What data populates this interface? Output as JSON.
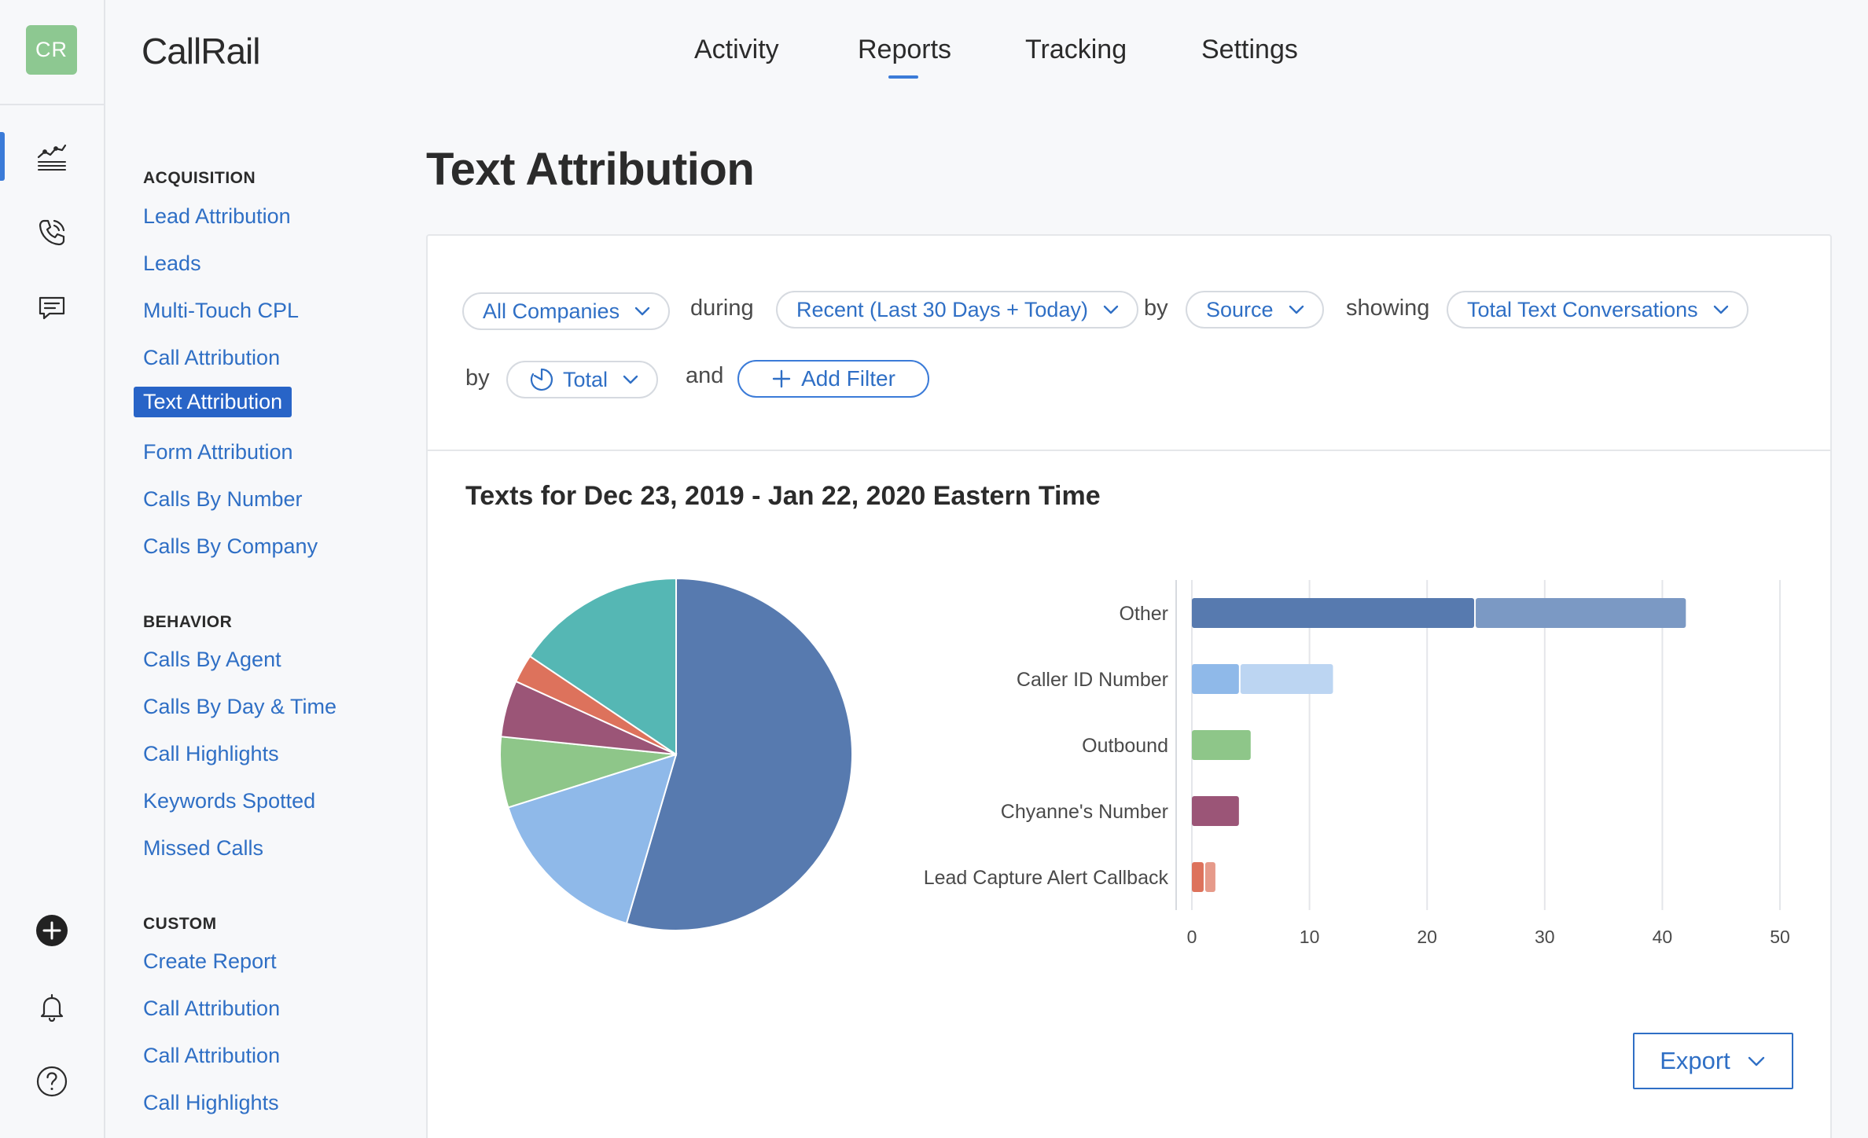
{
  "app": {
    "logo_initials": "CR",
    "brand_light": "Call",
    "brand_bold": "Rail"
  },
  "topnav": {
    "items": [
      "Activity",
      "Reports",
      "Tracking",
      "Settings"
    ],
    "active": "Reports"
  },
  "rail_icons": [
    "reports-chart-icon",
    "phone-icon",
    "message-icon",
    "add-circle-icon",
    "bell-icon",
    "help-icon"
  ],
  "sidebar": {
    "sections": [
      {
        "title": "ACQUISITION",
        "items": [
          "Lead Attribution",
          "Leads",
          "Multi-Touch CPL",
          "Call Attribution",
          "Text Attribution",
          "Form Attribution",
          "Calls By Number",
          "Calls By Company"
        ]
      },
      {
        "title": "BEHAVIOR",
        "items": [
          "Calls By Agent",
          "Calls By Day & Time",
          "Call Highlights",
          "Keywords Spotted",
          "Missed Calls"
        ]
      },
      {
        "title": "CUSTOM",
        "items": [
          "Create Report",
          "Call Attribution",
          "Call Attribution",
          "Call Highlights"
        ]
      }
    ],
    "active_item": "Text Attribution"
  },
  "page": {
    "title": "Text Attribution"
  },
  "filters": {
    "company": "All Companies",
    "during_label": "during",
    "date_range": "Recent (Last 30 Days + Today)",
    "by_label": "by",
    "group_by": "Source",
    "showing_label": "showing",
    "metric": "Total Text Conversations",
    "by_label_2": "by",
    "breakdown": "Total",
    "and_label": "and",
    "add_filter": "Add Filter"
  },
  "report": {
    "title": "Texts for Dec 23, 2019 - Jan 22, 2020 Eastern Time",
    "export_label": "Export"
  },
  "chart_data": [
    {
      "type": "pie",
      "slices": [
        {
          "label": "Other",
          "value": 42,
          "color": "#577aaf"
        },
        {
          "label": "Caller ID Number",
          "value": 12,
          "color": "#8fb9e9"
        },
        {
          "label": "Outbound",
          "value": 5,
          "color": "#8ec689"
        },
        {
          "label": "Chyanne's Number",
          "value": 4,
          "color": "#9b5577"
        },
        {
          "label": "Lead Capture Alert Callback",
          "value": 2,
          "color": "#dd725c"
        },
        {
          "label": "",
          "value": 12,
          "color": "#55b7b4"
        }
      ]
    },
    {
      "type": "bar",
      "orientation": "horizontal",
      "stacked": true,
      "categories": [
        "Other",
        "Caller ID Number",
        "Outbound",
        "Chyanne's Number",
        "Lead Capture Alert Callback"
      ],
      "series": [
        {
          "values": [
            24,
            4,
            5,
            4,
            1
          ],
          "colors": [
            "#577aaf",
            "#8fb9e9",
            "#8ec689",
            "#9b5577",
            "#dd725c"
          ]
        },
        {
          "values": [
            18,
            8,
            0,
            0,
            1
          ],
          "colors": [
            "#7b99c4",
            "#bcd5f2",
            "#8ec689",
            "#9b5577",
            "#e69a8a"
          ]
        }
      ],
      "xlim": [
        0,
        50
      ],
      "xticks": [
        "0",
        "10",
        "20",
        "30",
        "40",
        "50"
      ],
      "grid": true
    }
  ]
}
